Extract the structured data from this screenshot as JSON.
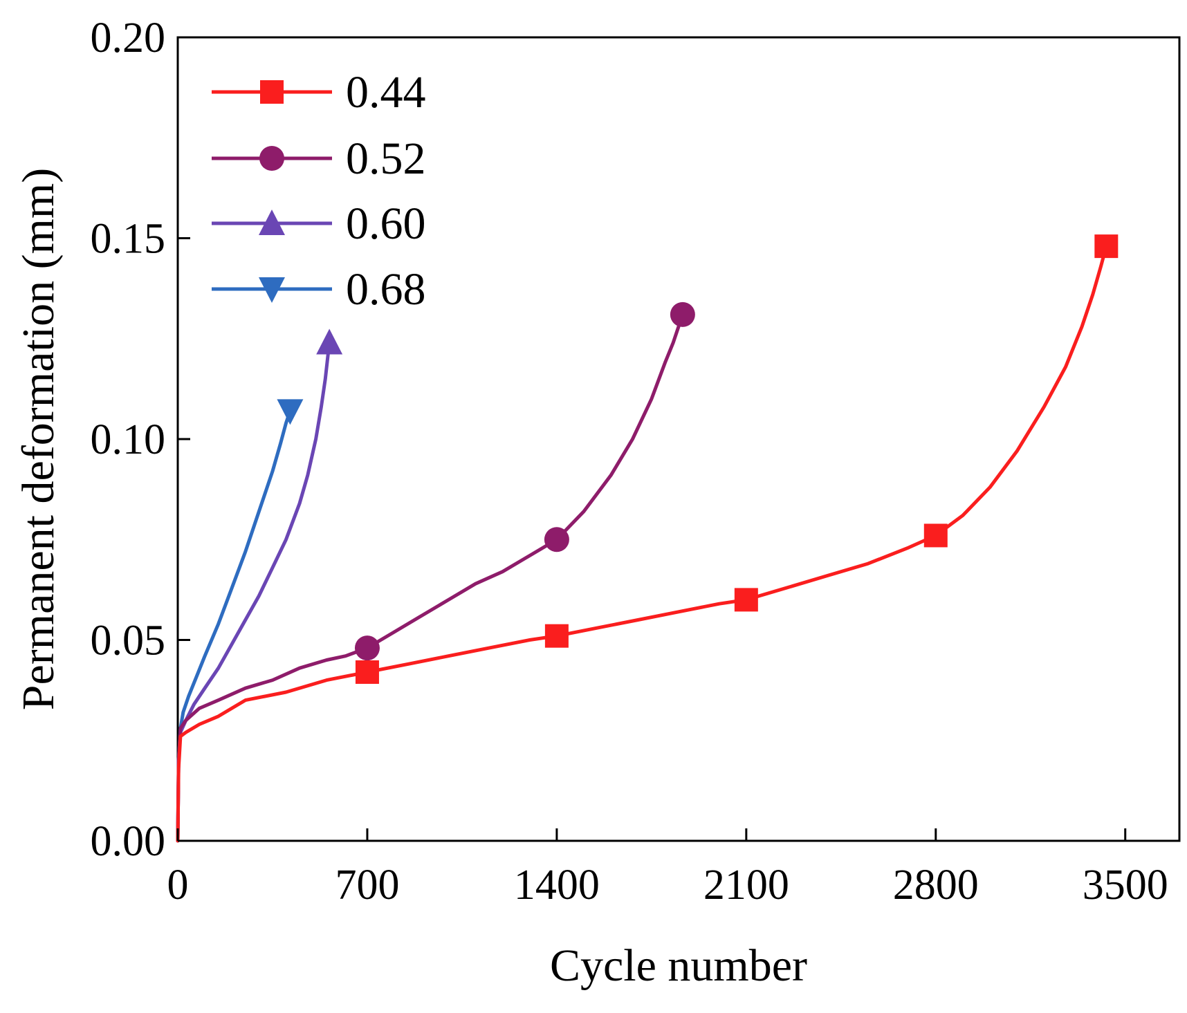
{
  "chart_data": {
    "type": "line",
    "xlabel": "Cycle number",
    "ylabel": "Permanent deformation (mm)",
    "xlim": [
      0,
      3700
    ],
    "ylim": [
      0,
      0.2
    ],
    "xticks": [
      0,
      700,
      1400,
      2100,
      2800,
      3500
    ],
    "yticks": [
      0.0,
      0.05,
      0.1,
      0.15,
      0.2
    ],
    "xtick_labels": [
      "0",
      "700",
      "1400",
      "2100",
      "2800",
      "3500"
    ],
    "ytick_labels": [
      "0.00",
      "0.05",
      "0.10",
      "0.15",
      "0.20"
    ],
    "legend_position": "top-left",
    "grid": false,
    "series": [
      {
        "name": "0.44",
        "color": "#fa1e1e",
        "marker": "square",
        "x": [
          0,
          3,
          10,
          30,
          80,
          150,
          250,
          400,
          550,
          700,
          850,
          1000,
          1150,
          1300,
          1400,
          1550,
          1700,
          1850,
          2000,
          2100,
          2250,
          2400,
          2550,
          2700,
          2800,
          2900,
          3000,
          3100,
          3200,
          3280,
          3340,
          3380,
          3410,
          3430
        ],
        "values": [
          0.0,
          0.018,
          0.026,
          0.027,
          0.029,
          0.031,
          0.035,
          0.037,
          0.04,
          0.042,
          0.044,
          0.046,
          0.048,
          0.05,
          0.051,
          0.053,
          0.055,
          0.057,
          0.059,
          0.06,
          0.063,
          0.066,
          0.069,
          0.073,
          0.076,
          0.081,
          0.088,
          0.097,
          0.108,
          0.118,
          0.128,
          0.136,
          0.143,
          0.148
        ],
        "marker_x": [
          700,
          1400,
          2100,
          2800,
          3430
        ],
        "marker_values": [
          0.042,
          0.051,
          0.06,
          0.076,
          0.148
        ]
      },
      {
        "name": "0.52",
        "color": "#8e1c6a",
        "marker": "circle",
        "x": [
          0,
          3,
          10,
          30,
          80,
          150,
          250,
          350,
          450,
          550,
          620,
          700,
          800,
          900,
          1000,
          1100,
          1200,
          1300,
          1400,
          1500,
          1600,
          1680,
          1750,
          1800,
          1830,
          1850,
          1865
        ],
        "values": [
          0.0,
          0.02,
          0.028,
          0.03,
          0.033,
          0.035,
          0.038,
          0.04,
          0.043,
          0.045,
          0.046,
          0.048,
          0.052,
          0.056,
          0.06,
          0.064,
          0.067,
          0.071,
          0.075,
          0.082,
          0.091,
          0.1,
          0.11,
          0.119,
          0.124,
          0.128,
          0.131
        ],
        "marker_x": [
          700,
          1400,
          1865
        ],
        "marker_values": [
          0.048,
          0.075,
          0.131
        ]
      },
      {
        "name": "0.60",
        "color": "#6a46b4",
        "marker": "triangle-up",
        "x": [
          0,
          3,
          10,
          30,
          60,
          100,
          150,
          200,
          250,
          300,
          350,
          400,
          450,
          480,
          510,
          530,
          545,
          555,
          560
        ],
        "values": [
          0.0,
          0.02,
          0.027,
          0.03,
          0.034,
          0.038,
          0.043,
          0.049,
          0.055,
          0.061,
          0.068,
          0.075,
          0.084,
          0.091,
          0.1,
          0.108,
          0.115,
          0.121,
          0.124
        ],
        "marker_x": [
          560
        ],
        "marker_values": [
          0.124
        ]
      },
      {
        "name": "0.68",
        "color": "#2e6cc0",
        "marker": "triangle-down",
        "x": [
          0,
          3,
          10,
          20,
          40,
          70,
          100,
          150,
          200,
          250,
          300,
          350,
          380,
          400,
          415
        ],
        "values": [
          0.0,
          0.02,
          0.028,
          0.032,
          0.036,
          0.041,
          0.046,
          0.054,
          0.063,
          0.072,
          0.082,
          0.092,
          0.099,
          0.104,
          0.107
        ],
        "marker_x": [
          415
        ],
        "marker_values": [
          0.107
        ]
      }
    ]
  }
}
